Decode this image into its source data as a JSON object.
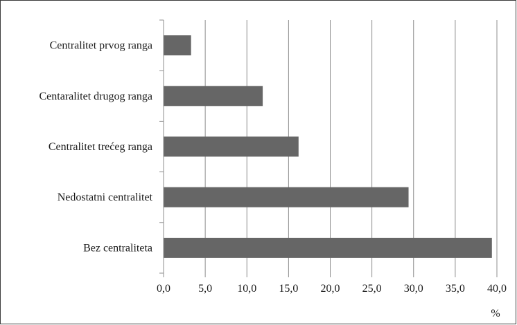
{
  "chart_data": {
    "type": "bar",
    "orientation": "horizontal",
    "title": "",
    "xlabel": "",
    "ylabel": "",
    "x_unit": "%",
    "categories": [
      "Centralitet prvog ranga",
      "Centaralitet drugog ranga",
      "Centralitet trećeg ranga",
      "Nedostatni centralitet",
      "Bez centraliteta"
    ],
    "values": [
      3.3,
      11.9,
      16.2,
      29.4,
      39.4
    ],
    "xlim": [
      0,
      40
    ],
    "x_ticks": [
      "0,0",
      "5,0",
      "10,0",
      "15,0",
      "20,0",
      "25,0",
      "30,0",
      "35,0",
      "40,0"
    ],
    "grid": "vertical",
    "legend": "none",
    "bar_color": "#666666",
    "grid_color": "#8c8c8c"
  }
}
